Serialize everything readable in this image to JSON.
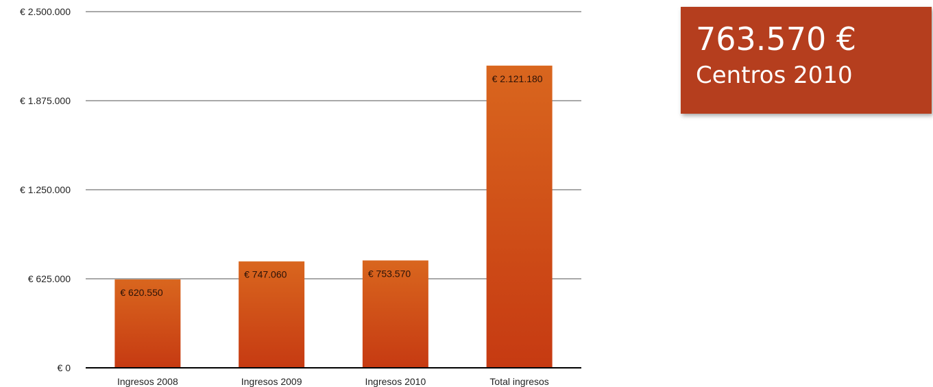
{
  "chart_data": {
    "type": "bar",
    "title": "",
    "xlabel": "",
    "ylabel": "",
    "categories": [
      "Ingresos 2008",
      "Ingresos 2009",
      "Ingresos 2010",
      "Total ingresos"
    ],
    "values": [
      620550,
      747060,
      753570,
      2121180
    ],
    "data_labels": [
      "€ 620.550",
      "€ 747.060",
      "€ 753.570",
      "€ 2.121.180"
    ],
    "ylim": [
      0,
      2500000
    ],
    "yticks": [
      0,
      625000,
      1250000,
      1875000,
      2500000
    ],
    "ytick_labels": [
      "€ 0",
      "€ 625.000",
      "€ 1.250.000",
      "€ 1.875.000",
      "€ 2.500.000"
    ],
    "grid": true,
    "legend": "none",
    "colors": {
      "bar_top": "#d9661e",
      "bar_bottom": "#c63a12",
      "grid": "#a8a8a8",
      "axis": "#000000"
    }
  },
  "callout": {
    "value": "763.570 €",
    "label": "Centros 2010",
    "background": "#b53e1e"
  }
}
